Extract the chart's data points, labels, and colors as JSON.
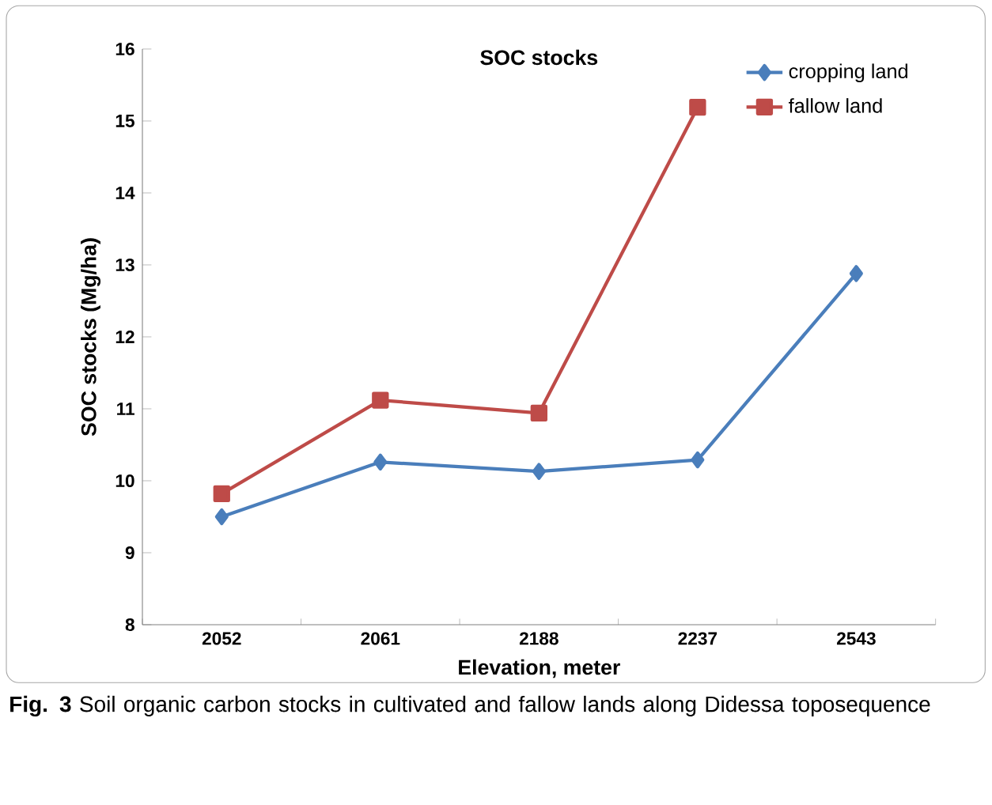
{
  "chart_data": {
    "type": "line",
    "title": "SOC stocks",
    "xlabel": "Elevation, meter",
    "ylabel": "SOC stocks (Mg/ha)",
    "categories": [
      "2052",
      "2061",
      "2188",
      "2237",
      "2543"
    ],
    "series": [
      {
        "name": "cropping land",
        "color": "#4a7ebb",
        "marker": "diamond",
        "values": [
          9.5,
          10.26,
          10.13,
          10.29,
          12.88
        ]
      },
      {
        "name": "fallow land",
        "color": "#be4b48",
        "marker": "square",
        "values": [
          9.82,
          11.12,
          10.94,
          15.19,
          null
        ]
      }
    ],
    "ylim": [
      8,
      16
    ],
    "yticks": [
      8,
      9,
      10,
      11,
      12,
      13,
      14,
      15,
      16
    ],
    "legend": "top right",
    "line_style": "solid",
    "annotations": [
      "**Fig. 3** Soil organic carbon stocks in cultivated and fallow lands along Didessa toposequence"
    ]
  }
}
